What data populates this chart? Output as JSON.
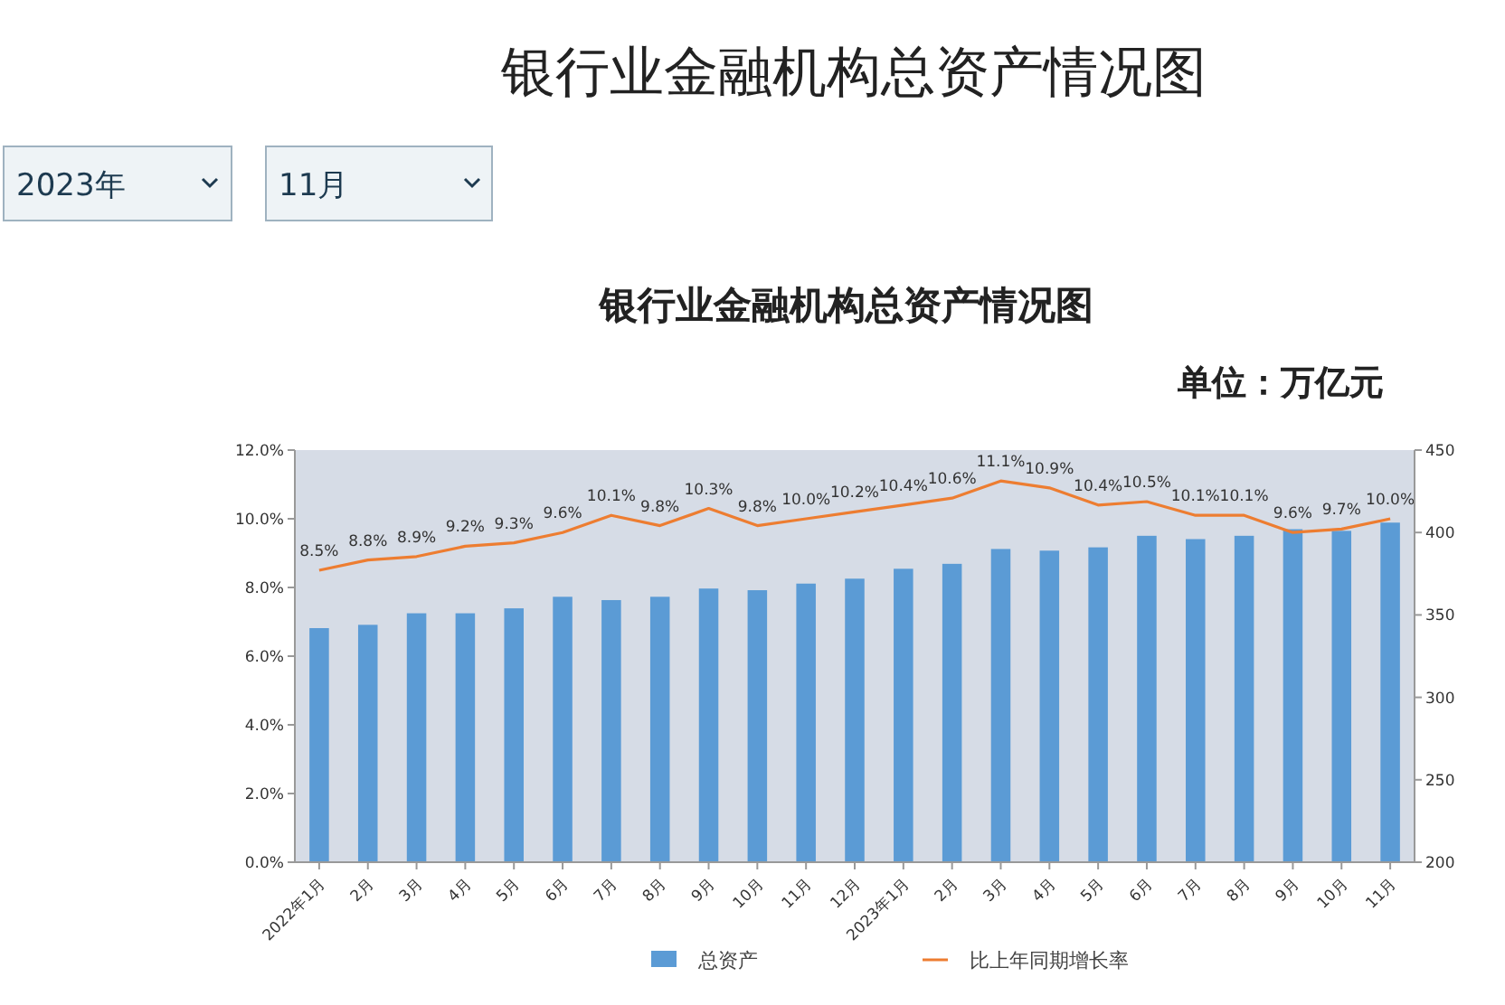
{
  "chart_data": {
    "type": "bar",
    "title": "银行业金融机构总资产情况图",
    "subtitle": "单位：万亿元",
    "annotations": [
      "2023年",
      "11月",
      "银行业金融机构总资产情况图"
    ],
    "categories": [
      "2022年1月",
      "2月",
      "3月",
      "4月",
      "5月",
      "6月",
      "7月",
      "8月",
      "9月",
      "10月",
      "11月",
      "12月",
      "2023年1月",
      "2月",
      "3月",
      "4月",
      "5月",
      "6月",
      "7月",
      "8月",
      "9月",
      "10月",
      "11月"
    ],
    "series": [
      {
        "name": "总资产",
        "axis": "y2",
        "color": "#5b9bd5",
        "values": [
          342,
          344,
          351,
          351,
          354,
          361,
          359,
          361,
          366,
          365,
          369,
          372,
          378,
          381,
          390,
          389,
          391,
          398,
          396,
          398,
          402,
          401,
          406
        ]
      },
      {
        "name": "比上年同期增长率",
        "type": "line",
        "axis": "y",
        "color": "#ed7d31",
        "value_labels": [
          "8.5%",
          "8.8%",
          "8.9%",
          "9.2%",
          "9.3%",
          "9.6%",
          "10.1%",
          "9.8%",
          "10.3%",
          "9.8%",
          "10.0%",
          "10.2%",
          "10.4%",
          "10.6%",
          "11.1%",
          "10.9%",
          "10.4%",
          "10.5%",
          "10.1%",
          "10.1%",
          "9.6%",
          "9.7%",
          "10.0%"
        ],
        "values": [
          8.5,
          8.8,
          8.9,
          9.2,
          9.3,
          9.6,
          10.1,
          9.8,
          10.3,
          9.8,
          10.0,
          10.2,
          10.4,
          10.6,
          11.1,
          10.9,
          10.4,
          10.5,
          10.1,
          10.1,
          9.6,
          9.7,
          10.0
        ]
      }
    ],
    "ylim": [
      0,
      12
    ],
    "yticks": [
      {
        "value": 0,
        "label": "0.0%"
      },
      {
        "value": 2,
        "label": "2.0%"
      },
      {
        "value": 4,
        "label": "4.0%"
      },
      {
        "value": 6,
        "label": "6.0%"
      },
      {
        "value": 8,
        "label": "8.0%"
      },
      {
        "value": 10,
        "label": "10.0%"
      },
      {
        "value": 12,
        "label": "12.0%"
      }
    ],
    "y2lim": [
      200,
      450
    ],
    "y2ticks": [
      200,
      250,
      300,
      350,
      400,
      450
    ],
    "legend": "bottom",
    "marker": "none",
    "line_style": "solid"
  }
}
